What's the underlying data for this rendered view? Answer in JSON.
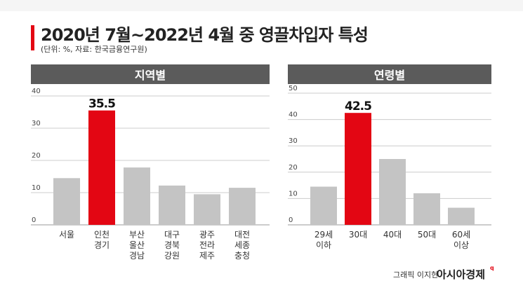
{
  "title": "2020년 7월~2022년 4월 중 영끌차입자 특성",
  "subtitle": "(단위: %, 자료: 한국금융연구원)",
  "colors": {
    "accent": "#e30613",
    "bar": "#c4c4c4",
    "header": "#5b5b5b"
  },
  "chart_data": [
    {
      "type": "bar",
      "title": "지역별",
      "categories": [
        "서울",
        "인천\n경기",
        "부산\n울산\n경남",
        "대구\n경북\n강원",
        "광주\n전라\n제주",
        "대전\n세종\n충청"
      ],
      "values": [
        14.5,
        35.5,
        17.8,
        12.2,
        9.5,
        11.5
      ],
      "highlight_index": 1,
      "data_labels": [
        "",
        "35.5",
        "",
        "",
        "",
        ""
      ],
      "yticks": [
        0,
        10,
        20,
        30,
        40
      ],
      "ylim": [
        0,
        40
      ],
      "grid": true
    },
    {
      "type": "bar",
      "title": "연령별",
      "categories": [
        "29세\n이하",
        "30대",
        "40대",
        "50대",
        "60세\n이상"
      ],
      "values": [
        14.5,
        42.5,
        25.0,
        12.0,
        6.5
      ],
      "highlight_index": 1,
      "data_labels": [
        "",
        "42.5",
        "",
        "",
        ""
      ],
      "yticks": [
        0,
        10,
        20,
        30,
        40,
        50
      ],
      "ylim": [
        0,
        50
      ],
      "grid": true
    }
  ],
  "footer": {
    "credit": "그래픽 이지현",
    "brand": "아시아경제",
    "brand_mark": "q"
  }
}
